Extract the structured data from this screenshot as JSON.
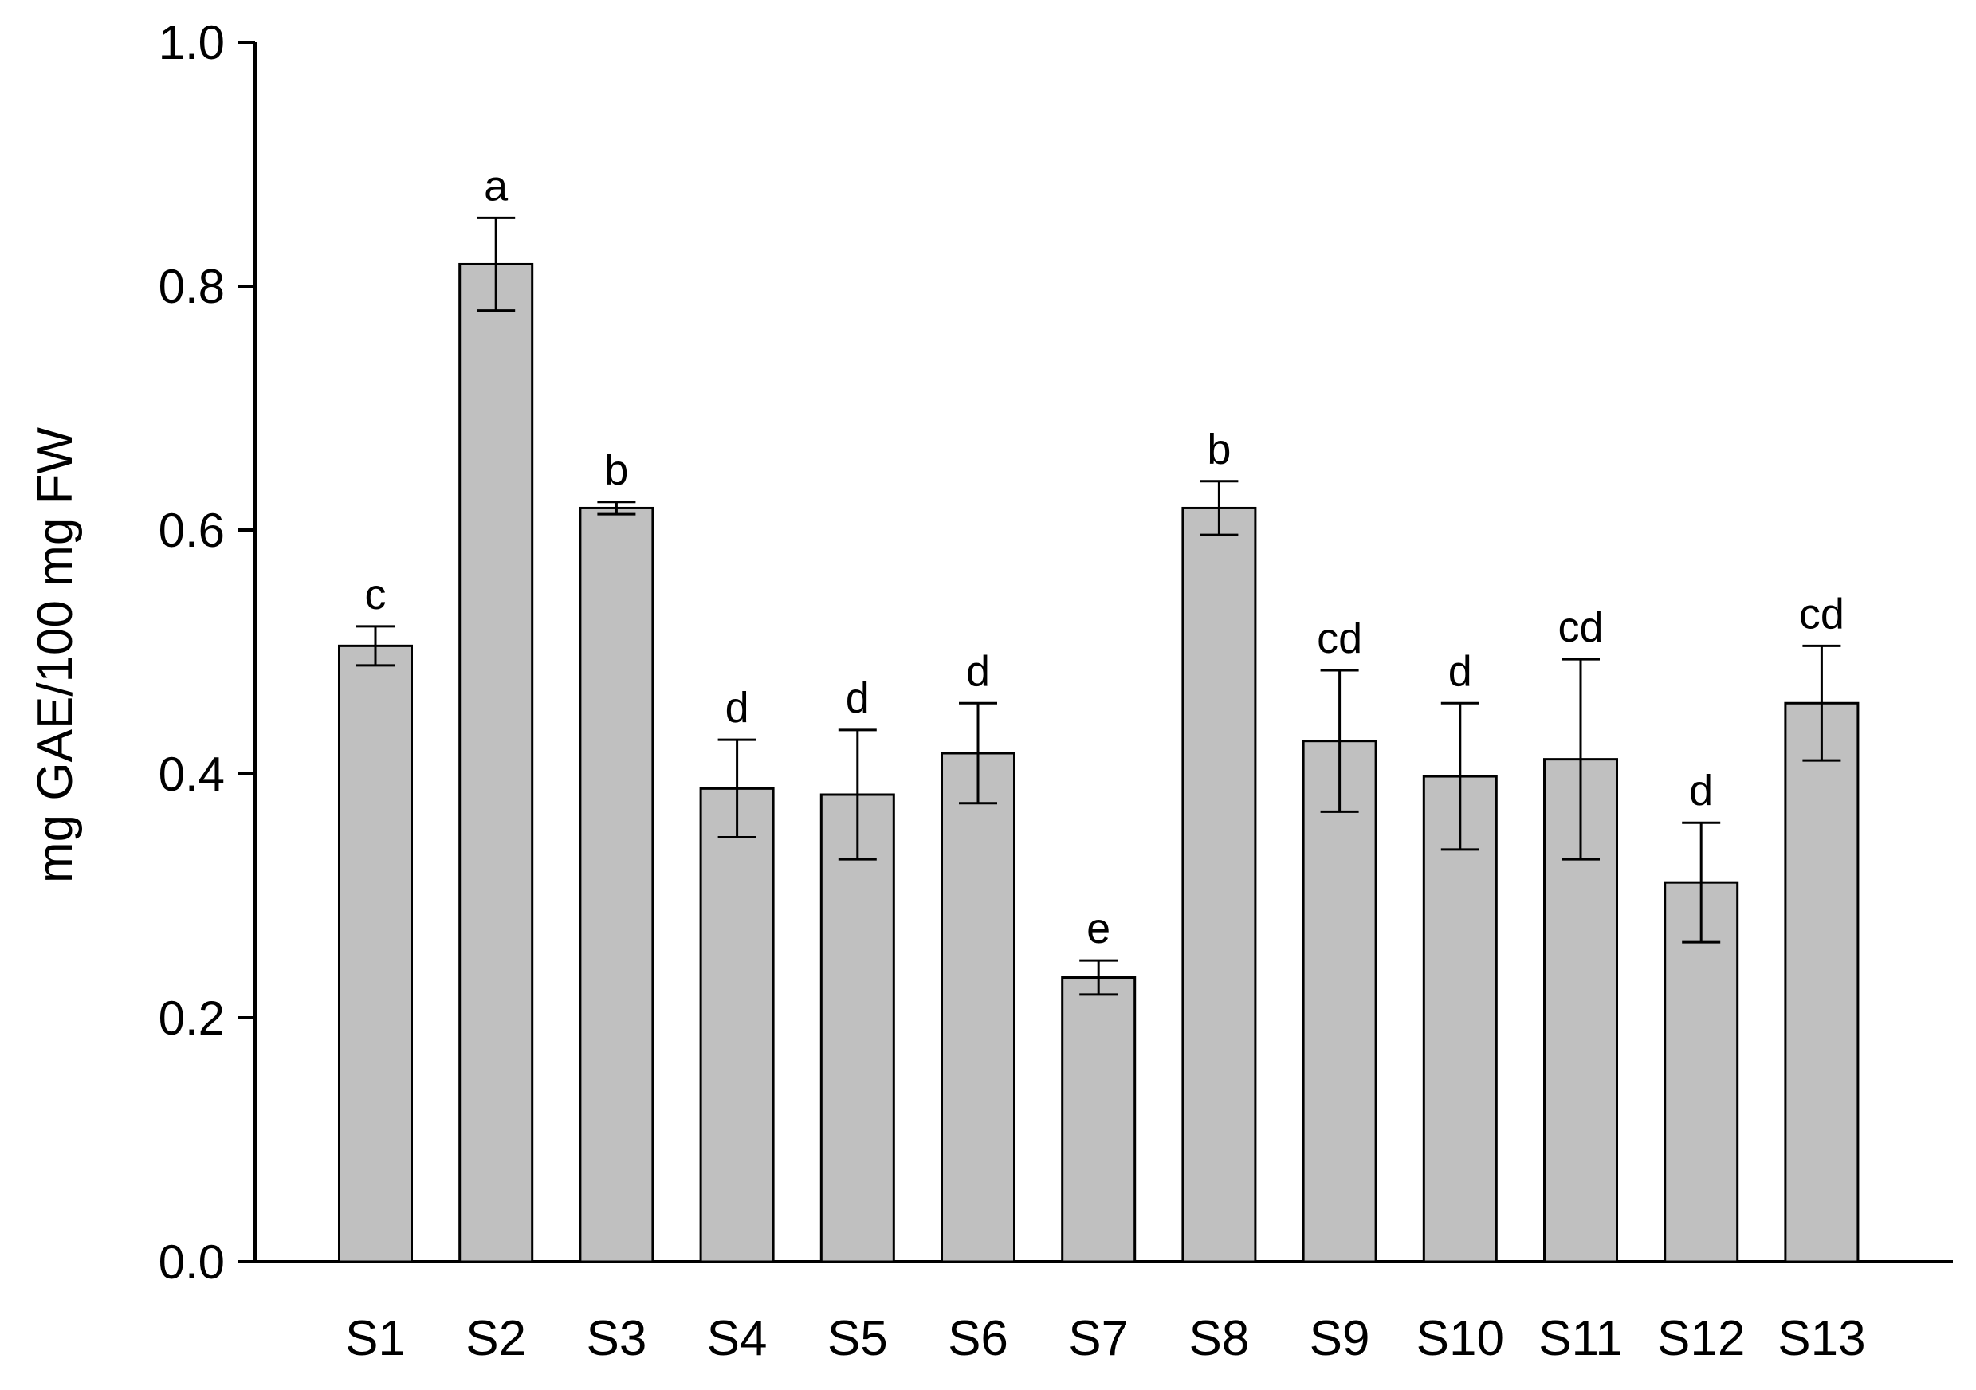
{
  "chart_data": {
    "type": "bar",
    "ylabel": "mg GAE/100 mg FW",
    "xlabel": "",
    "ylim": [
      0,
      1.0
    ],
    "yticks": [
      "0.0",
      "0.2",
      "0.4",
      "0.6",
      "0.8",
      "1.0"
    ],
    "categories": [
      "S1",
      "S2",
      "S3",
      "S4",
      "S5",
      "S6",
      "S7",
      "S8",
      "S9",
      "S10",
      "S11",
      "S12",
      "S13"
    ],
    "values": [
      0.505,
      0.818,
      0.618,
      0.388,
      0.383,
      0.417,
      0.233,
      0.618,
      0.427,
      0.398,
      0.412,
      0.311,
      0.458
    ],
    "errors": [
      0.016,
      0.038,
      0.005,
      0.04,
      0.053,
      0.041,
      0.014,
      0.022,
      0.058,
      0.06,
      0.082,
      0.049,
      0.047
    ],
    "significance_labels": [
      "c",
      "a",
      "b",
      "d",
      "d",
      "d",
      "e",
      "b",
      "cd",
      "d",
      "cd",
      "d",
      "cd"
    ],
    "colors": {
      "bar_fill": "#c0c0c0",
      "bar_stroke": "#000000",
      "axis": "#000000"
    },
    "grid": false,
    "error_bars": true
  }
}
